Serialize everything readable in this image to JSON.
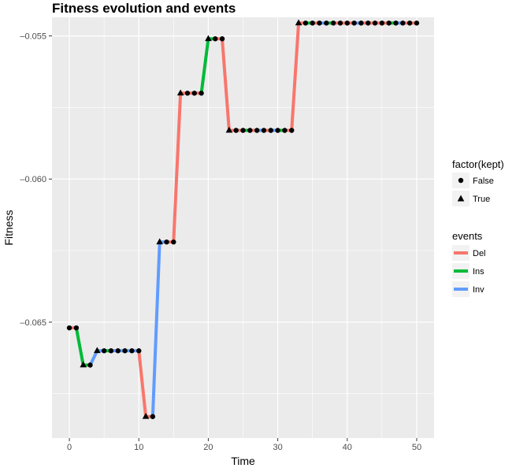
{
  "chart_data": {
    "type": "line",
    "title": "Fitness evolution and events",
    "xlabel": "Time",
    "ylabel": "Fitness",
    "xlim": [
      -2.5,
      52.5
    ],
    "ylim": [
      -0.06905,
      -0.05435
    ],
    "x_ticks": [
      0,
      10,
      20,
      30,
      40,
      50
    ],
    "y_ticks": [
      -0.065,
      -0.06,
      -0.055
    ],
    "x_tick_labels": [
      "0",
      "10",
      "20",
      "30",
      "40",
      "50"
    ],
    "y_tick_labels": [
      "–0.065",
      "–0.060",
      "–0.055"
    ],
    "grid": true,
    "legend_placement": "right",
    "legends": {
      "shape": {
        "title": "factor(kept)",
        "items": [
          {
            "label": "False",
            "shape": "circle"
          },
          {
            "label": "True",
            "shape": "triangle"
          }
        ]
      },
      "color": {
        "title": "events",
        "items": [
          {
            "label": "Del",
            "color": "#f8766d"
          },
          {
            "label": "Ins",
            "color": "#00ba38"
          },
          {
            "label": "Inv",
            "color": "#619cff"
          }
        ]
      }
    },
    "points": [
      {
        "x": 0,
        "y": -0.0652,
        "kept": "False",
        "event": "Del"
      },
      {
        "x": 1,
        "y": -0.0652,
        "kept": "False",
        "event": "Ins"
      },
      {
        "x": 2,
        "y": -0.0665,
        "kept": "True",
        "event": "Ins"
      },
      {
        "x": 3,
        "y": -0.0665,
        "kept": "False",
        "event": "Inv"
      },
      {
        "x": 4,
        "y": -0.066,
        "kept": "True",
        "event": "Inv"
      },
      {
        "x": 5,
        "y": -0.066,
        "kept": "False",
        "event": "Ins"
      },
      {
        "x": 6,
        "y": -0.066,
        "kept": "False",
        "event": "Inv"
      },
      {
        "x": 7,
        "y": -0.066,
        "kept": "False",
        "event": "Inv"
      },
      {
        "x": 8,
        "y": -0.066,
        "kept": "False",
        "event": "Inv"
      },
      {
        "x": 9,
        "y": -0.066,
        "kept": "False",
        "event": "Inv"
      },
      {
        "x": 10,
        "y": -0.066,
        "kept": "False",
        "event": "Del"
      },
      {
        "x": 11,
        "y": -0.0683,
        "kept": "True",
        "event": "Del"
      },
      {
        "x": 12,
        "y": -0.0683,
        "kept": "False",
        "event": "Inv"
      },
      {
        "x": 13,
        "y": -0.0622,
        "kept": "True",
        "event": "Inv"
      },
      {
        "x": 14,
        "y": -0.0622,
        "kept": "False",
        "event": "Del"
      },
      {
        "x": 15,
        "y": -0.0622,
        "kept": "False",
        "event": "Del"
      },
      {
        "x": 16,
        "y": -0.057,
        "kept": "True",
        "event": "Del"
      },
      {
        "x": 17,
        "y": -0.057,
        "kept": "False",
        "event": "Del"
      },
      {
        "x": 18,
        "y": -0.057,
        "kept": "False",
        "event": "Del"
      },
      {
        "x": 19,
        "y": -0.057,
        "kept": "False",
        "event": "Ins"
      },
      {
        "x": 20,
        "y": -0.0551,
        "kept": "True",
        "event": "Ins"
      },
      {
        "x": 21,
        "y": -0.0551,
        "kept": "False",
        "event": "Del"
      },
      {
        "x": 22,
        "y": -0.0551,
        "kept": "False",
        "event": "Del"
      },
      {
        "x": 23,
        "y": -0.0583,
        "kept": "True",
        "event": "Del"
      },
      {
        "x": 24,
        "y": -0.0583,
        "kept": "False",
        "event": "Del"
      },
      {
        "x": 25,
        "y": -0.0583,
        "kept": "False",
        "event": "Ins"
      },
      {
        "x": 26,
        "y": -0.0583,
        "kept": "False",
        "event": "Del"
      },
      {
        "x": 27,
        "y": -0.0583,
        "kept": "False",
        "event": "Inv"
      },
      {
        "x": 28,
        "y": -0.0583,
        "kept": "False",
        "event": "Del"
      },
      {
        "x": 29,
        "y": -0.0583,
        "kept": "False",
        "event": "Inv"
      },
      {
        "x": 30,
        "y": -0.0583,
        "kept": "False",
        "event": "Ins"
      },
      {
        "x": 31,
        "y": -0.0583,
        "kept": "False",
        "event": "Del"
      },
      {
        "x": 32,
        "y": -0.0583,
        "kept": "False",
        "event": "Del"
      },
      {
        "x": 33,
        "y": -0.05455,
        "kept": "True",
        "event": "Del"
      },
      {
        "x": 34,
        "y": -0.05455,
        "kept": "False",
        "event": "Ins"
      },
      {
        "x": 35,
        "y": -0.05455,
        "kept": "False",
        "event": "Del"
      },
      {
        "x": 36,
        "y": -0.05455,
        "kept": "False",
        "event": "Inv"
      },
      {
        "x": 37,
        "y": -0.05455,
        "kept": "False",
        "event": "Ins"
      },
      {
        "x": 38,
        "y": -0.05455,
        "kept": "False",
        "event": "Del"
      },
      {
        "x": 39,
        "y": -0.05455,
        "kept": "False",
        "event": "Del"
      },
      {
        "x": 40,
        "y": -0.05455,
        "kept": "False",
        "event": "Del"
      },
      {
        "x": 41,
        "y": -0.05455,
        "kept": "False",
        "event": "Inv"
      },
      {
        "x": 42,
        "y": -0.05455,
        "kept": "False",
        "event": "Del"
      },
      {
        "x": 43,
        "y": -0.05455,
        "kept": "False",
        "event": "Del"
      },
      {
        "x": 44,
        "y": -0.05455,
        "kept": "False",
        "event": "Del"
      },
      {
        "x": 45,
        "y": -0.05455,
        "kept": "False",
        "event": "Del"
      },
      {
        "x": 46,
        "y": -0.05455,
        "kept": "False",
        "event": "Ins"
      },
      {
        "x": 47,
        "y": -0.05455,
        "kept": "False",
        "event": "Inv"
      },
      {
        "x": 48,
        "y": -0.05455,
        "kept": "False",
        "event": "Del"
      },
      {
        "x": 49,
        "y": -0.05455,
        "kept": "False",
        "event": "Del"
      },
      {
        "x": 50,
        "y": -0.05455,
        "kept": "False",
        "event": "Del"
      }
    ]
  }
}
